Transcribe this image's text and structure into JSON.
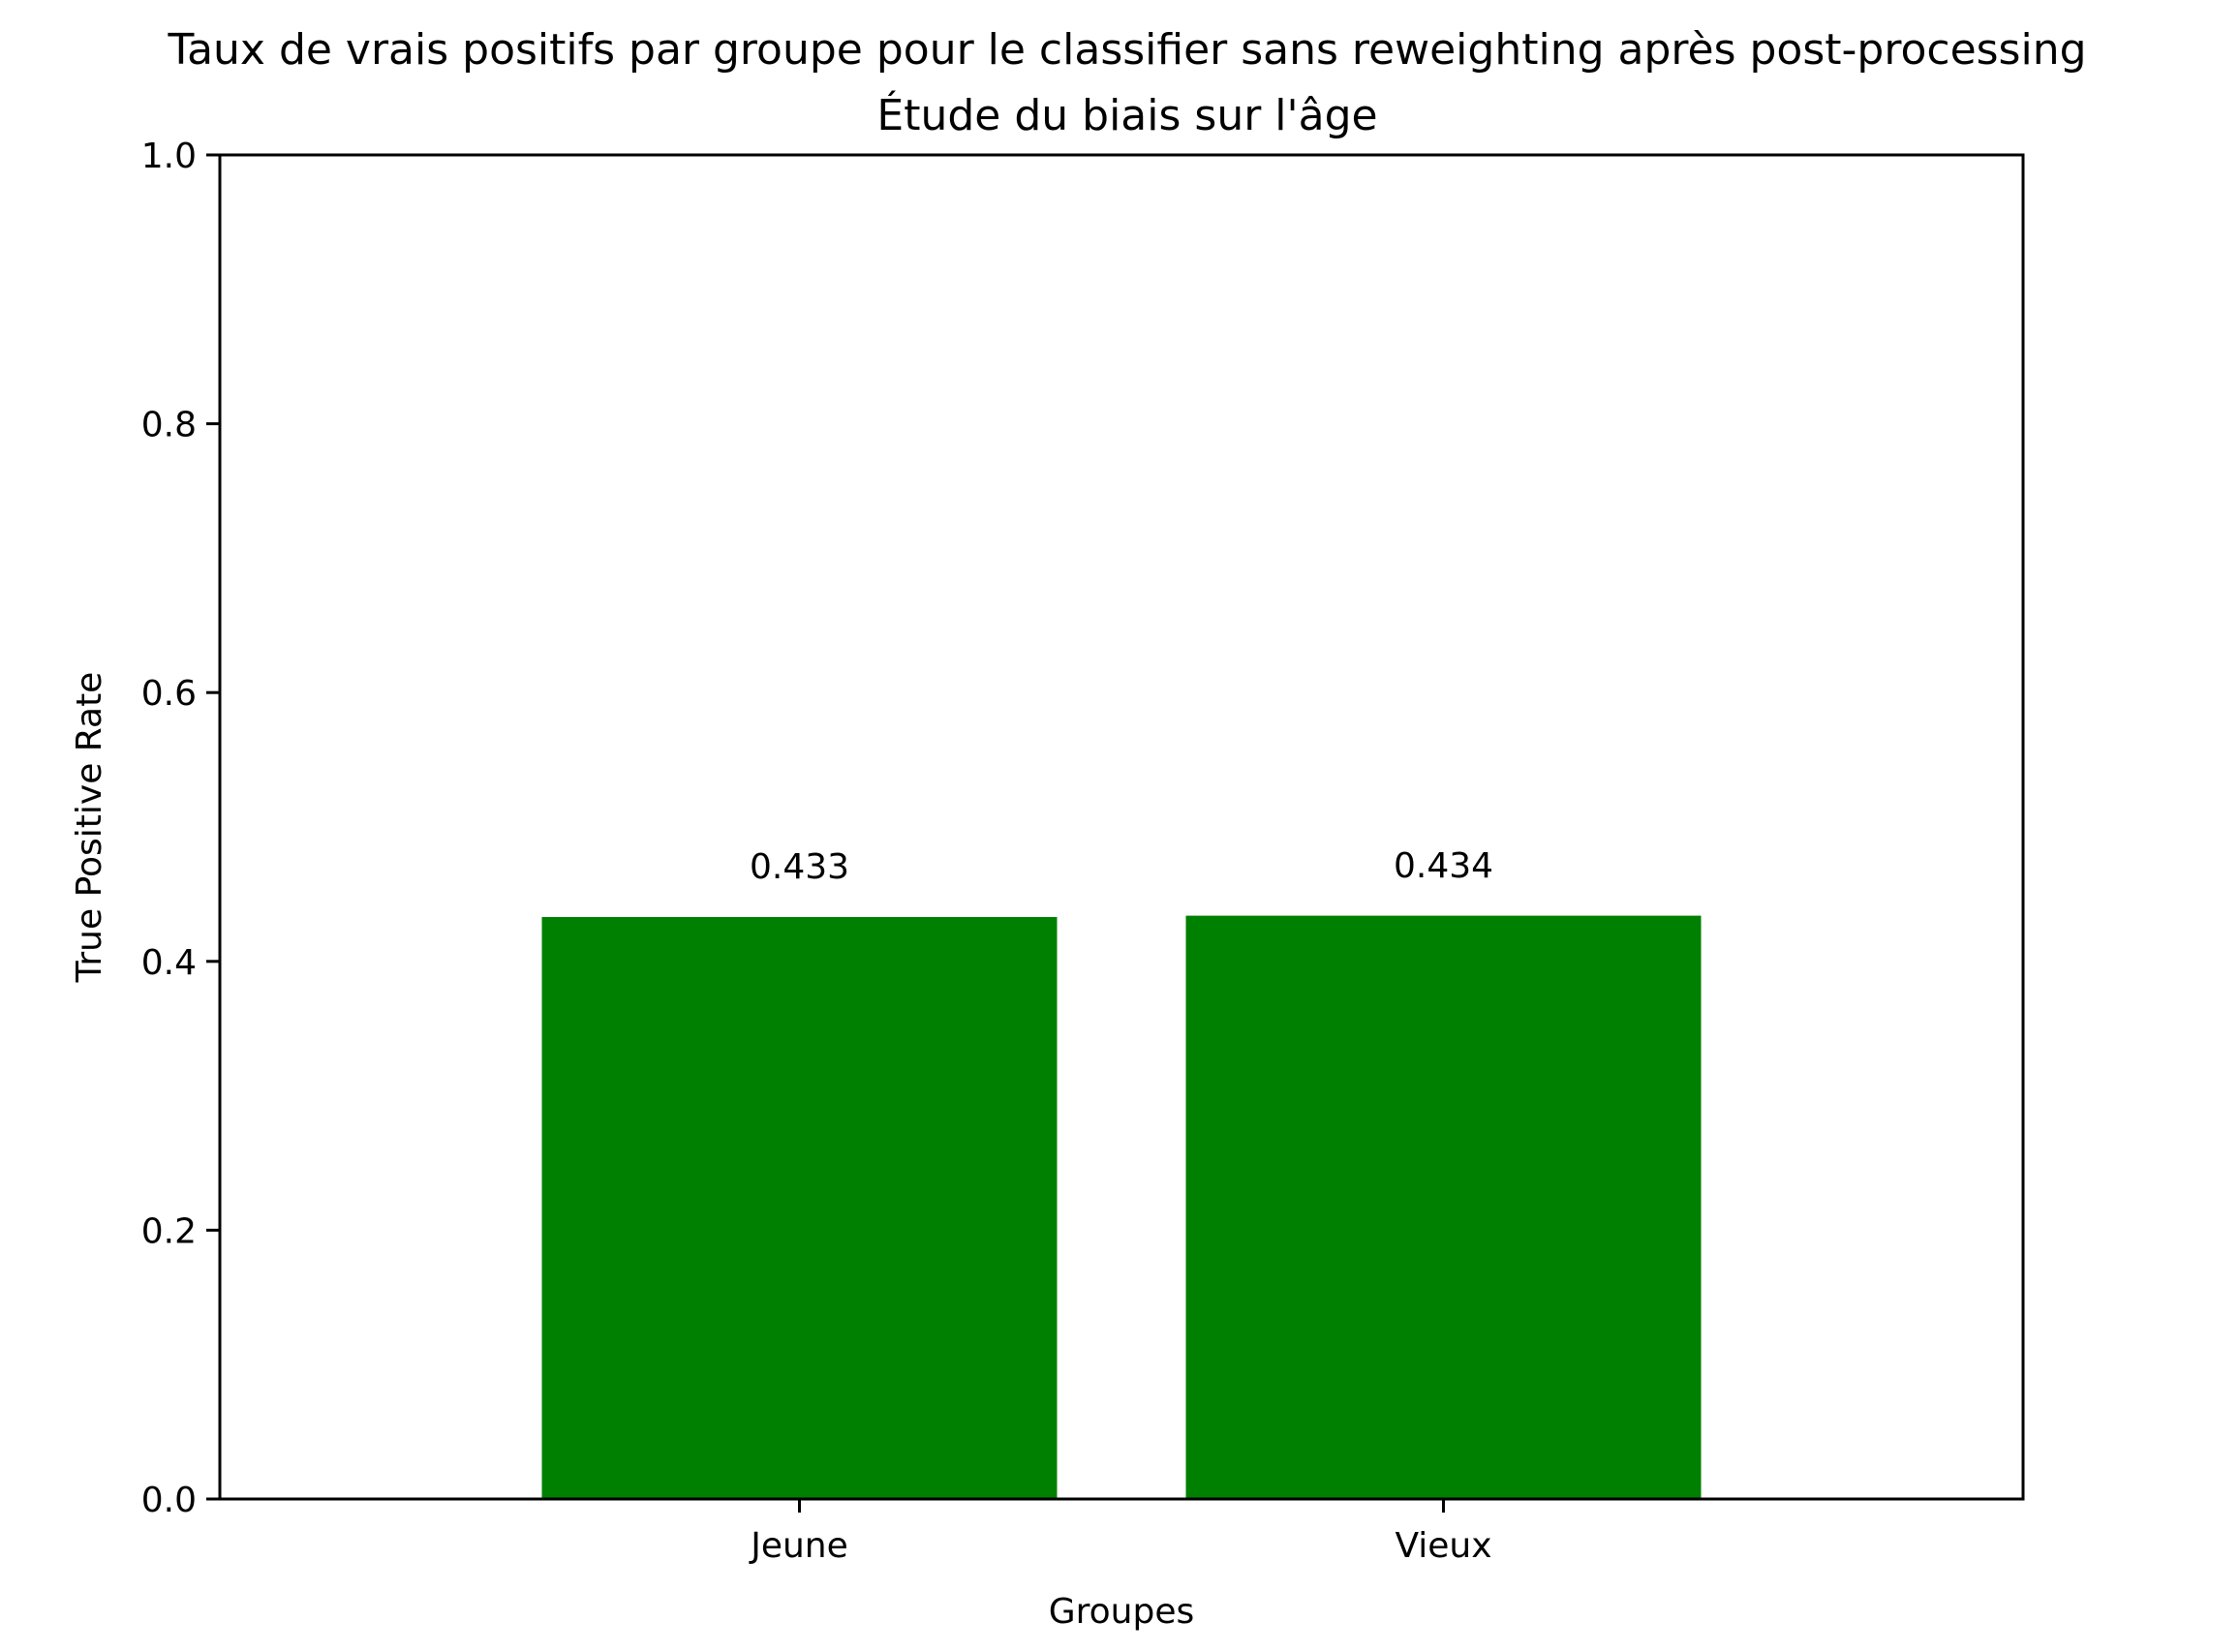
{
  "chart_data": {
    "type": "bar",
    "title": "Taux de vrais positifs par groupe pour le classifier sans reweighting après post-processing",
    "subtitle": "Étude du biais sur l'âge",
    "xlabel": "Groupes",
    "ylabel": "True Positive Rate",
    "categories": [
      "Jeune",
      "Vieux"
    ],
    "values": [
      0.433,
      0.434
    ],
    "data_labels": [
      "0.433",
      "0.434"
    ],
    "ylim": [
      0,
      1.0
    ],
    "yticks": [
      0.0,
      0.2,
      0.4,
      0.6,
      0.8,
      1.0
    ],
    "ytick_labels": [
      "0.0",
      "0.2",
      "0.4",
      "0.6",
      "0.8",
      "1.0"
    ],
    "bar_color": "#008000",
    "grid": false,
    "legend": "none"
  }
}
